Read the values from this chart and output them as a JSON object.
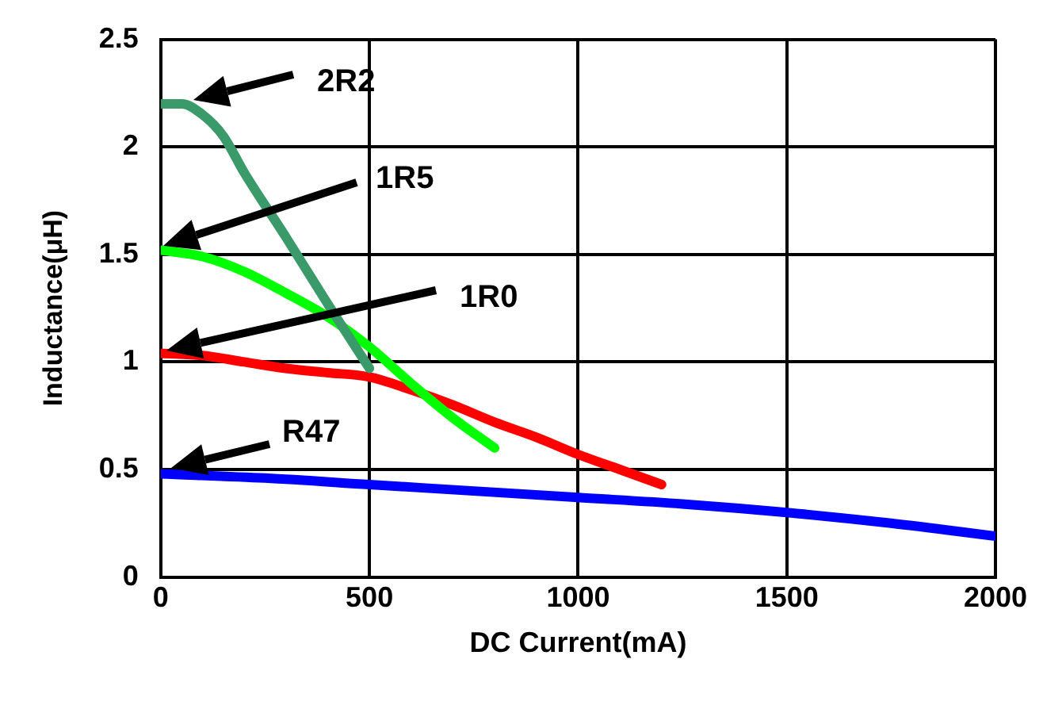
{
  "chart_data": {
    "type": "line",
    "xlabel": "DC Current(mA)",
    "ylabel": "Inductance(μH)",
    "xlim": [
      0,
      2000
    ],
    "xticks": [
      0,
      500,
      1000,
      1500,
      2000
    ],
    "ylim": [
      0,
      2.5
    ],
    "yticks": [
      0,
      0.5,
      1,
      1.5,
      2,
      2.5
    ],
    "grid": true,
    "legend": false,
    "marker": "none",
    "line_style": "solid",
    "series": [
      {
        "color": "#3a9a6a",
        "x": [
          0,
          50,
          100,
          150,
          200,
          300,
          400,
          500
        ],
        "values": [
          2.2,
          2.2,
          2.15,
          2.05,
          1.88,
          1.58,
          1.27,
          0.97
        ]
      },
      {
        "color": "#00ff00",
        "x": [
          0,
          100,
          200,
          300,
          400,
          500,
          600,
          700,
          800
        ],
        "values": [
          1.52,
          1.49,
          1.42,
          1.32,
          1.21,
          1.07,
          0.9,
          0.74,
          0.6
        ]
      },
      {
        "color": "#ff0000",
        "x": [
          0,
          100,
          200,
          300,
          400,
          500,
          600,
          700,
          800,
          900,
          1000,
          1100,
          1200
        ],
        "values": [
          1.04,
          1.03,
          1.0,
          0.97,
          0.95,
          0.93,
          0.87,
          0.8,
          0.72,
          0.65,
          0.57,
          0.5,
          0.43
        ]
      },
      {
        "color": "#0000ff",
        "x": [
          0,
          250,
          500,
          750,
          1000,
          1250,
          1500,
          1750,
          2000
        ],
        "values": [
          0.48,
          0.46,
          0.43,
          0.4,
          0.37,
          0.34,
          0.3,
          0.25,
          0.19
        ]
      }
    ],
    "annotations": [
      "2R2",
      "1R5",
      "1R0",
      "R47"
    ]
  }
}
